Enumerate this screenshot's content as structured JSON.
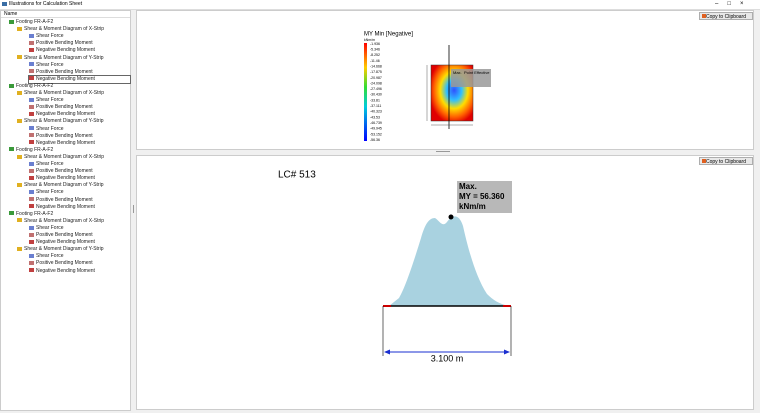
{
  "window": {
    "title": "Illustrations for Calculation Sheet"
  },
  "tree": {
    "header": "Name",
    "groups": [
      {
        "label": "Footing FR-A-F2",
        "strips": [
          {
            "label": "Shear & Moment Diagram of X-Strip",
            "items": [
              "Shear Force",
              "Positive Bending Moment",
              "Negative Bending Moment"
            ]
          },
          {
            "label": "Shear & Moment Diagram of Y-Strip",
            "items": [
              "Shear Force",
              "Positive Bending Moment",
              "Negative Bending Moment"
            ]
          }
        ]
      },
      {
        "label": "Footing FR-A-F2",
        "strips": [
          {
            "label": "Shear & Moment Diagram of X-Strip",
            "items": [
              "Shear Force",
              "Positive Bending Moment",
              "Negative Bending Moment"
            ]
          },
          {
            "label": "Shear & Moment Diagram of Y-Strip",
            "items": [
              "Shear Force",
              "Positive Bending Moment",
              "Negative Bending Moment"
            ]
          }
        ]
      },
      {
        "label": "Footing FR-A-F2",
        "strips": [
          {
            "label": "Shear & Moment Diagram of X-Strip",
            "items": [
              "Shear Force",
              "Positive Bending Moment",
              "Negative Bending Moment"
            ]
          },
          {
            "label": "Shear & Moment Diagram of Y-Strip",
            "items": [
              "Shear Force",
              "Positive Bending Moment",
              "Negative Bending Moment"
            ]
          }
        ]
      },
      {
        "label": "Footing FR-A-F2",
        "strips": [
          {
            "label": "Shear & Moment Diagram of X-Strip",
            "items": [
              "Shear Force",
              "Positive Bending Moment",
              "Negative Bending Moment"
            ]
          },
          {
            "label": "Shear & Moment Diagram of Y-Strip",
            "items": [
              "Shear Force",
              "Positive Bending Moment",
              "Negative Bending Moment"
            ]
          }
        ]
      }
    ]
  },
  "top_panel": {
    "button": "Copy to Clipboard",
    "legend_title": "MY Min [Negative]",
    "legend_unit": "kNm/m",
    "legend_values": [
      "-1.936",
      "-5.346",
      "-8.252",
      "-11.46",
      "-14.668",
      "-17.875",
      "-20.987",
      "-24.098",
      "-27.496",
      "-30.430",
      "-33.81",
      "-37.111",
      "-40.323",
      "-43.53",
      "-46.739",
      "-49.945",
      "-53.152",
      "-56.36"
    ],
    "plan_labels": [
      "Max.",
      "Point Effective"
    ]
  },
  "bottom_panel": {
    "button": "Copy to Clipboard",
    "load_case": "LC# 513",
    "max_label": [
      "Max.",
      "MY = 56.360",
      "kNm/m"
    ],
    "dimension": "3.100 m"
  }
}
